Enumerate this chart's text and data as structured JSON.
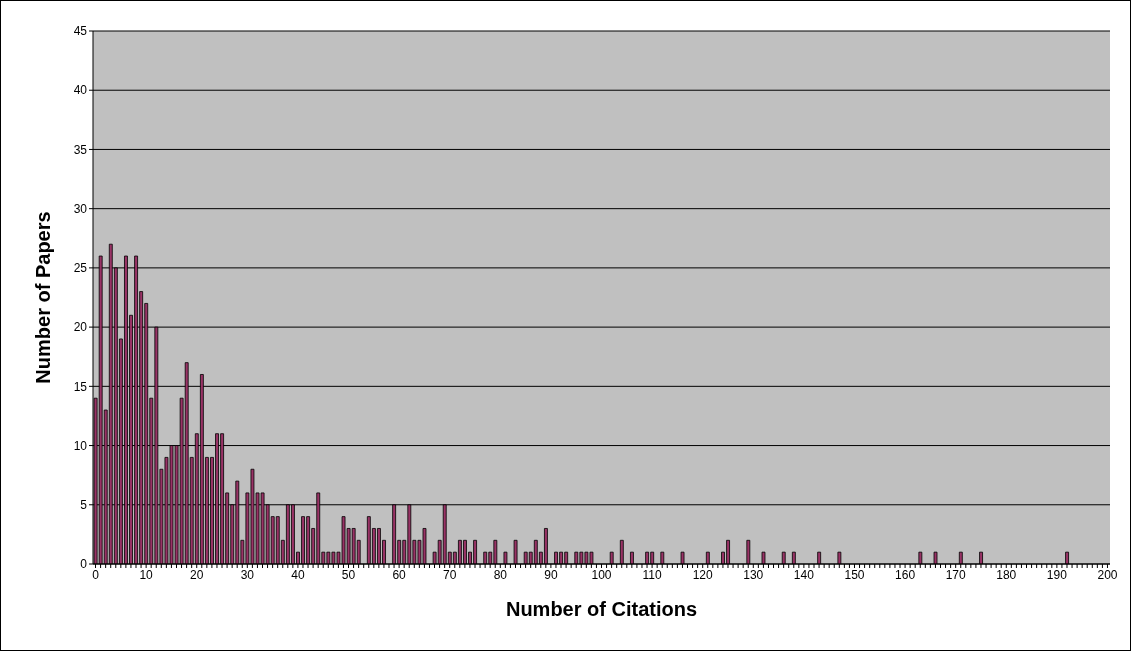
{
  "chart_data": {
    "type": "bar",
    "xlabel": "Number of Citations",
    "ylabel": "Number of Papers",
    "categories": [
      "0",
      null,
      null,
      null,
      null,
      null,
      null,
      null,
      null,
      null,
      "10",
      null,
      null,
      null,
      null,
      null,
      null,
      null,
      null,
      null,
      "20",
      null,
      null,
      null,
      null,
      null,
      null,
      null,
      null,
      null,
      "30",
      null,
      null,
      null,
      null,
      null,
      null,
      null,
      null,
      null,
      "40",
      null,
      null,
      null,
      null,
      null,
      null,
      null,
      null,
      null,
      "50",
      null,
      null,
      null,
      null,
      null,
      null,
      null,
      null,
      null,
      "60",
      null,
      null,
      null,
      null,
      null,
      null,
      null,
      null,
      null,
      "70",
      null,
      null,
      null,
      null,
      null,
      null,
      null,
      null,
      null,
      "80",
      null,
      null,
      null,
      null,
      null,
      null,
      null,
      null,
      null,
      "90",
      null,
      null,
      null,
      null,
      null,
      null,
      null,
      null,
      null,
      "100",
      null,
      null,
      null,
      null,
      null,
      null,
      null,
      null,
      null,
      "110",
      null,
      null,
      null,
      null,
      null,
      null,
      null,
      null,
      null,
      "120",
      null,
      null,
      null,
      null,
      null,
      null,
      null,
      null,
      null,
      "130",
      null,
      null,
      null,
      null,
      null,
      null,
      null,
      null,
      null,
      "140",
      null,
      null,
      null,
      null,
      null,
      null,
      null,
      null,
      null,
      "150",
      null,
      null,
      null,
      null,
      null,
      null,
      null,
      null,
      null,
      "160",
      null,
      null,
      null,
      null,
      null,
      null,
      null,
      null,
      null,
      "170",
      null,
      null,
      null,
      null,
      null,
      null,
      null,
      null,
      null,
      "180",
      null,
      null,
      null,
      null,
      null,
      null,
      null,
      null,
      null,
      "190",
      null,
      null,
      null,
      null,
      null,
      null,
      null,
      null,
      null,
      "200"
    ],
    "values": [
      14,
      26,
      13,
      27,
      25,
      19,
      26,
      21,
      26,
      23,
      22,
      14,
      20,
      8,
      9,
      10,
      10,
      14,
      17,
      9,
      11,
      16,
      9,
      9,
      11,
      11,
      6,
      5,
      7,
      2,
      6,
      8,
      6,
      6,
      5,
      4,
      4,
      2,
      5,
      5,
      1,
      4,
      4,
      3,
      6,
      1,
      1,
      1,
      1,
      4,
      3,
      3,
      2,
      0,
      4,
      3,
      3,
      2,
      0,
      5,
      2,
      2,
      5,
      2,
      2,
      3,
      0,
      1,
      2,
      5,
      1,
      1,
      2,
      2,
      1,
      2,
      0,
      1,
      1,
      2,
      0,
      1,
      0,
      2,
      0,
      1,
      1,
      2,
      1,
      3,
      0,
      1,
      1,
      1,
      0,
      1,
      1,
      1,
      1,
      0,
      0,
      0,
      1,
      0,
      2,
      0,
      1,
      0,
      0,
      1,
      1,
      0,
      1,
      0,
      0,
      0,
      1,
      0,
      0,
      0,
      0,
      1,
      0,
      0,
      1,
      2,
      0,
      0,
      0,
      2,
      0,
      0,
      1,
      0,
      0,
      0,
      1,
      0,
      1,
      0,
      0,
      0,
      0,
      1,
      0,
      0,
      0,
      1,
      0,
      0,
      0,
      0,
      0,
      0,
      0,
      0,
      0,
      0,
      0,
      0,
      0,
      0,
      0,
      1,
      0,
      0,
      1,
      0,
      0,
      0,
      0,
      1,
      0,
      0,
      0,
      1,
      0,
      0,
      0,
      0,
      0,
      0,
      0,
      0,
      0,
      0,
      0,
      0,
      0,
      0,
      0,
      0,
      1,
      0,
      0,
      0,
      0,
      0,
      0,
      0,
      0
    ],
    "color": "#993366",
    "ylim": [
      0,
      45
    ],
    "yticks": [
      0,
      5,
      10,
      15,
      20,
      25,
      30,
      35,
      40,
      45
    ],
    "grid": "y"
  }
}
